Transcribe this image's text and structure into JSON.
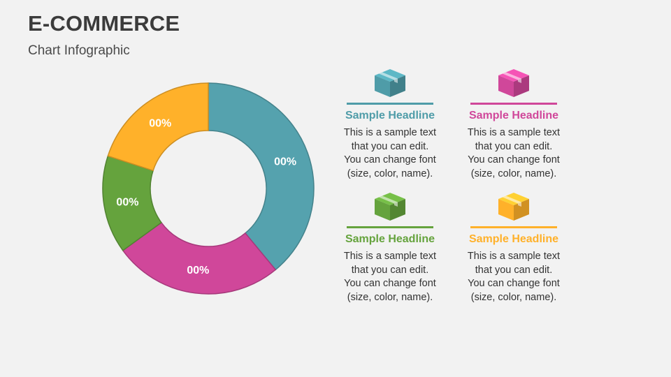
{
  "title": "E-COMMERCE",
  "subtitle": "Chart Infographic",
  "chart_data": {
    "type": "pie",
    "variant": "donut",
    "slices": [
      {
        "label": "00%",
        "value": 39,
        "color": "#55a2ae"
      },
      {
        "label": "00%",
        "value": 26,
        "color": "#d0479a"
      },
      {
        "label": "00%",
        "value": 15,
        "color": "#65a33d"
      },
      {
        "label": "00%",
        "value": 20,
        "color": "#ffb12a"
      }
    ]
  },
  "cards": [
    {
      "headline": "Sample Headline",
      "body": "This is a sample text\nthat you can edit.\nYou can change font\n(size, color, name).",
      "color": "#4f9ca8",
      "icon": "box-icon"
    },
    {
      "headline": "Sample Headline",
      "body": "This is a sample text\nthat you can edit.\nYou can change font\n(size, color, name).",
      "color": "#d0479a",
      "icon": "box-icon"
    },
    {
      "headline": "Sample Headline",
      "body": "This is a sample text\nthat you can edit.\nYou can change font\n(size, color, name).",
      "color": "#65a33d",
      "icon": "box-icon"
    },
    {
      "headline": "Sample Headline",
      "body": "This is a sample text\nthat you can edit.\nYou can change font\n(size, color, name).",
      "color": "#ffb12a",
      "icon": "box-icon"
    }
  ]
}
